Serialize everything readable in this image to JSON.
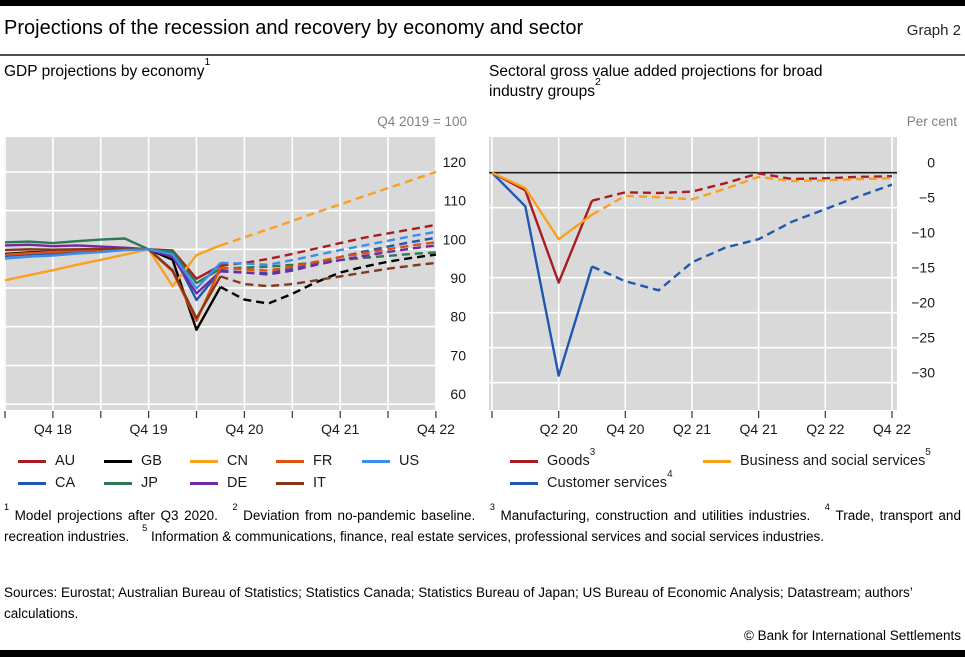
{
  "header": {
    "title": "Projections of the recession and recovery by economy and sector",
    "graph_label": "Graph 2"
  },
  "colors": {
    "plot_bg": "#d9d9d9",
    "grid": "#ffffff",
    "zero_line": "#1a1a1a",
    "topbar": "#000000",
    "unit_label": "#808080",
    "tick": "#333333"
  },
  "chart_data": [
    {
      "type": "line",
      "title_lines": [
        "GDP projections by economy"
      ],
      "title_sup": "1",
      "unit_label": "Q4 2019 = 100",
      "x_quarters": [
        "Q2 18",
        "Q3 18",
        "Q4 18",
        "Q1 19",
        "Q2 19",
        "Q3 19",
        "Q4 19",
        "Q1 20",
        "Q2 20",
        "Q3 20",
        "Q4 20",
        "Q1 21",
        "Q2 21",
        "Q3 21",
        "Q4 21",
        "Q1 22",
        "Q2 22",
        "Q3 22",
        "Q4 22"
      ],
      "x_tick_indices": [
        0,
        2,
        4,
        6,
        8,
        10,
        12,
        14,
        16,
        18
      ],
      "x_tick_label_indices": [
        2,
        6,
        10,
        14,
        18
      ],
      "solid_until_index": 9,
      "projection_note": "dashed = model projections after Q3 2020",
      "ylim": [
        58.5,
        129.0
      ],
      "yticks": [
        120,
        110,
        100,
        90,
        80,
        70,
        60
      ],
      "grid": true,
      "legend_position": "below",
      "series": [
        {
          "name": "AU",
          "color": "#a81c22",
          "values": [
            98.5,
            98.8,
            99.0,
            99.4,
            99.7,
            100.0,
            100.0,
            99.7,
            92.4,
            95.8,
            96.5,
            97.5,
            98.8,
            100.2,
            101.6,
            103.0,
            104.1,
            105.2,
            106.3
          ]
        },
        {
          "name": "CA",
          "color": "#2058b0",
          "values": [
            98.3,
            98.7,
            98.9,
            99.2,
            99.5,
            99.9,
            100.0,
            99.0,
            86.9,
            94.5,
            94.0,
            93.8,
            95.0,
            96.5,
            98.0,
            99.4,
            100.7,
            101.9,
            103.0
          ]
        },
        {
          "name": "GB",
          "color": "#000000",
          "values": [
            98.8,
            99.2,
            99.4,
            99.9,
            99.7,
            100.0,
            100.0,
            97.3,
            79.2,
            90.3,
            87.0,
            86.0,
            88.5,
            91.5,
            94.0,
            95.5,
            96.8,
            97.8,
            98.6
          ]
        },
        {
          "name": "JP",
          "color": "#2c7a54",
          "values": [
            101.8,
            102.0,
            101.6,
            102.1,
            102.5,
            102.8,
            100.0,
            99.4,
            91.3,
            95.0,
            95.3,
            95.5,
            96.0,
            96.6,
            97.2,
            97.8,
            98.3,
            98.8,
            99.2
          ]
        },
        {
          "name": "CN",
          "color": "#f9a01e",
          "values": [
            92.0,
            93.3,
            94.6,
            96.0,
            97.3,
            98.6,
            100.0,
            90.5,
            98.5,
            101.0,
            103.1,
            105.2,
            107.3,
            109.5,
            111.6,
            113.7,
            115.8,
            117.9,
            120.0
          ]
        },
        {
          "name": "DE",
          "color": "#722aa2",
          "values": [
            101.0,
            101.2,
            100.8,
            101.0,
            100.7,
            100.4,
            100.0,
            98.0,
            88.6,
            94.3,
            94.0,
            93.5,
            94.5,
            96.0,
            97.2,
            98.3,
            99.3,
            100.2,
            101.0
          ]
        },
        {
          "name": "FR",
          "color": "#e0500f",
          "values": [
            98.6,
            99.0,
            99.3,
            99.6,
            99.9,
            100.0,
            100.0,
            94.3,
            81.5,
            95.3,
            94.8,
            94.5,
            95.5,
            96.8,
            98.0,
            99.0,
            100.0,
            101.0,
            101.8
          ]
        },
        {
          "name": "IT",
          "color": "#84381a",
          "values": [
            99.8,
            100.0,
            99.9,
            100.0,
            100.1,
            100.2,
            100.0,
            94.6,
            82.2,
            93.0,
            91.0,
            90.5,
            91.0,
            92.0,
            93.0,
            94.0,
            95.0,
            95.8,
            96.5
          ]
        },
        {
          "name": "US",
          "color": "#3b8eea",
          "values": [
            97.6,
            98.1,
            98.4,
            98.9,
            99.3,
            99.8,
            100.0,
            98.7,
            89.9,
            96.5,
            96.3,
            96.0,
            97.2,
            98.5,
            99.8,
            101.0,
            102.2,
            103.4,
            104.5
          ]
        }
      ],
      "legend_rows": [
        [
          "AU",
          "GB",
          "CN",
          "FR",
          "US"
        ],
        [
          "CA",
          "JP",
          "DE",
          "IT"
        ]
      ]
    },
    {
      "type": "line",
      "title_lines": [
        "Sectoral gross value added projections for broad",
        "industry groups"
      ],
      "title_sup": "2",
      "unit_label": "Per cent",
      "x_quarters": [
        "Q4 19",
        "Q1 20",
        "Q2 20",
        "Q3 20",
        "Q4 20",
        "Q1 21",
        "Q2 21",
        "Q3 21",
        "Q4 21",
        "Q1 22",
        "Q2 22",
        "Q3 22",
        "Q4 22"
      ],
      "x_tick_indices": [
        0,
        2,
        4,
        6,
        8,
        10,
        12
      ],
      "x_tick_label_indices": [
        2,
        4,
        6,
        8,
        10,
        12
      ],
      "solid_until_index": 3,
      "projection_note": "dashed = model projections after Q3 2020",
      "ylim": [
        -33.9,
        5.1
      ],
      "yticks": [
        0,
        -5,
        -10,
        -15,
        -20,
        -25,
        -30
      ],
      "zero_line": true,
      "grid": true,
      "legend_position": "below",
      "series": [
        {
          "name": "Goods",
          "sup": "3",
          "color": "#a81c22",
          "values": [
            0,
            -2.5,
            -15.7,
            -4.0,
            -2.8,
            -2.9,
            -2.7,
            -1.5,
            -0.1,
            -0.9,
            -0.8,
            -0.6,
            -0.5
          ]
        },
        {
          "name": "Customer services",
          "sup": "4",
          "color": "#2058b0",
          "values": [
            0,
            -4.8,
            -29.0,
            -13.4,
            -15.5,
            -16.8,
            -12.8,
            -10.7,
            -9.5,
            -7.0,
            -5.2,
            -3.4,
            -1.7
          ]
        },
        {
          "name": "Business and social services",
          "sup": "5",
          "color": "#f9a01e",
          "values": [
            0,
            -2.2,
            -9.5,
            -6.0,
            -3.3,
            -3.5,
            -3.8,
            -2.3,
            -0.6,
            -1.2,
            -1.1,
            -0.9,
            -0.8
          ]
        }
      ],
      "legend_rows": [
        [
          "Goods",
          "Business and social services"
        ],
        [
          "Customer services"
        ]
      ]
    }
  ],
  "footnotes": [
    {
      "sup": "1",
      "text": "Model projections after Q3 2020."
    },
    {
      "sup": "2",
      "text": "Deviation from no-pandemic baseline."
    },
    {
      "sup": "3",
      "text": "Manufacturing, construction and utilities industries."
    },
    {
      "sup": "4",
      "text": "Trade, transport and recreation industries."
    },
    {
      "sup": "5",
      "text": "Information & communications, finance, real estate services, professional services and social services industries."
    }
  ],
  "sources": {
    "text": "Sources: Eurostat; Australian Bureau of Statistics; Statistics Canada; Statistics Bureau of Japan; US Bureau of Economic Analysis; Datastream; authors’ calculations."
  },
  "copyright": {
    "text": "© Bank for International Settlements"
  }
}
